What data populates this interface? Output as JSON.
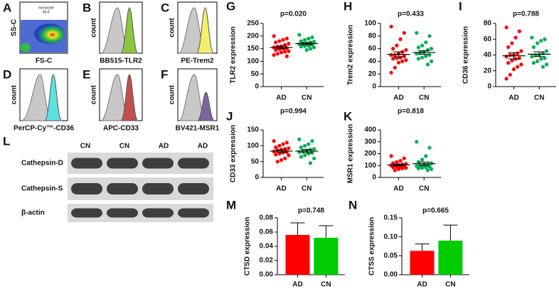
{
  "flow": {
    "panels": [
      {
        "label": "A",
        "x_label": "FS-C",
        "y_label": "SS-C",
        "gate": "monocyte",
        "gate_value": "45.6"
      },
      {
        "label": "B",
        "x_label": "BB515-TLR2",
        "y_label": "count",
        "color": "#8dc63f"
      },
      {
        "label": "C",
        "x_label": "PE-Trem2",
        "y_label": "count",
        "color": "#f2f06a"
      },
      {
        "label": "D",
        "x_label": "PerCP-Cy™-CD36",
        "y_label": "count",
        "color": "#5ee0e0"
      },
      {
        "label": "E",
        "x_label": "APC-CD33",
        "y_label": "count",
        "color": "#c0504d"
      },
      {
        "label": "F",
        "x_label": "BV421-MSR1",
        "y_label": "count",
        "color": "#8064a2"
      }
    ]
  },
  "blot": {
    "label": "L",
    "lanes": [
      "CN",
      "CN",
      "AD",
      "AD"
    ],
    "rows": [
      "Cathepsin-D",
      "Cathepsin-S",
      "β-actin"
    ]
  },
  "chart_data": [
    {
      "type": "strip",
      "label": "G",
      "annotation": "p=0.020",
      "y_label": "TLR2 expression",
      "categories": [
        "AD",
        "CN"
      ],
      "colors": [
        "#ff0000",
        "#00b050"
      ],
      "points": [
        [
          200,
          190,
          185,
          180,
          175,
          170,
          165,
          160,
          158,
          155,
          152,
          150,
          148,
          145,
          140,
          138,
          135,
          130,
          125,
          120
        ],
        [
          205,
          195,
          190,
          185,
          180,
          178,
          175,
          172,
          170,
          168,
          165,
          162,
          160,
          158,
          155,
          150,
          145
        ]
      ],
      "mean": [
        155,
        170
      ],
      "sem": [
        5,
        4
      ],
      "ylim": [
        0,
        250
      ],
      "yticks": [
        0,
        50,
        100,
        150,
        200,
        250
      ]
    },
    {
      "type": "strip",
      "label": "H",
      "annotation": "p=0.433",
      "y_label": "Trem2 expression",
      "categories": [
        "AD",
        "CN"
      ],
      "colors": [
        "#ff0000",
        "#00b050"
      ],
      "points": [
        [
          95,
          85,
          75,
          65,
          60,
          58,
          55,
          52,
          50,
          50,
          48,
          46,
          45,
          44,
          42,
          40,
          38,
          30,
          22
        ],
        [
          85,
          80,
          70,
          65,
          62,
          60,
          58,
          55,
          54,
          52,
          50,
          48,
          46,
          44,
          40,
          35
        ]
      ],
      "mean": [
        51,
        54
      ],
      "sem": [
        4,
        3
      ],
      "ylim": [
        0,
        100
      ],
      "yticks": [
        0,
        20,
        40,
        60,
        80,
        100
      ]
    },
    {
      "type": "strip",
      "label": "I",
      "annotation": "p=0.788",
      "y_label": "CD36 expression",
      "categories": [
        "AD",
        "CN"
      ],
      "colors": [
        "#ff0000",
        "#00b050"
      ],
      "points": [
        [
          75,
          70,
          62,
          55,
          50,
          45,
          42,
          40,
          40,
          38,
          36,
          35,
          33,
          30,
          28,
          25,
          22,
          15,
          10
        ],
        [
          62,
          60,
          58,
          55,
          50,
          45,
          42,
          40,
          40,
          38,
          36,
          35,
          32,
          30,
          28,
          25
        ]
      ],
      "mean": [
        39,
        41
      ],
      "sem": [
        4,
        3
      ],
      "ylim": [
        0,
        80
      ],
      "yticks": [
        0,
        20,
        40,
        60,
        80
      ]
    },
    {
      "type": "strip",
      "label": "J",
      "annotation": "p=0.994",
      "y_label": "CD33 expression",
      "categories": [
        "AD",
        "CN"
      ],
      "colors": [
        "#ff0000",
        "#00b050"
      ],
      "points": [
        [
          115,
          110,
          105,
          100,
          95,
          92,
          90,
          88,
          85,
          82,
          80,
          78,
          75,
          72,
          70,
          60,
          55,
          50
        ],
        [
          120,
          115,
          105,
          100,
          95,
          90,
          88,
          85,
          82,
          80,
          78,
          75,
          70,
          65,
          60,
          45
        ]
      ],
      "mean": [
        83,
        83
      ],
      "sem": [
        4,
        5
      ],
      "ylim": [
        0,
        150
      ],
      "yticks": [
        0,
        50,
        100,
        150
      ]
    },
    {
      "type": "strip",
      "label": "K",
      "annotation": "p=0.818",
      "y_label": "MSR1 expression",
      "categories": [
        "AD",
        "CN"
      ],
      "colors": [
        "#ff0000",
        "#00b050"
      ],
      "points": [
        [
          180,
          160,
          140,
          130,
          120,
          115,
          110,
          105,
          100,
          100,
          95,
          90,
          88,
          85,
          80,
          75,
          70,
          60
        ],
        [
          300,
          250,
          180,
          150,
          130,
          120,
          110,
          105,
          100,
          95,
          90,
          85,
          80,
          75,
          70,
          60
        ]
      ],
      "mean": [
        105,
        115
      ],
      "sem": [
        7,
        15
      ],
      "ylim": [
        0,
        400
      ],
      "yticks": [
        0,
        100,
        200,
        300,
        400
      ]
    },
    {
      "type": "bar",
      "label": "M",
      "annotation": "p=0.748",
      "y_label": "CTSD expression",
      "categories": [
        "AD",
        "CN"
      ],
      "colors": [
        "#ff0000",
        "#00cc00"
      ],
      "values": [
        0.056,
        0.052
      ],
      "errors": [
        0.017,
        0.017
      ],
      "ylim": [
        0,
        0.08
      ],
      "yticks": [
        {
          "value": 0,
          "label": "0.00"
        },
        {
          "value": 0.02,
          "label": "0.02"
        },
        {
          "value": 0.04,
          "label": "0.04"
        },
        {
          "value": 0.06,
          "label": "0.06"
        },
        {
          "value": 0.08,
          "label": "0.08"
        }
      ]
    },
    {
      "type": "bar",
      "label": "N",
      "annotation": "p=0.665",
      "y_label": "CTSS expression",
      "categories": [
        "AD",
        "CN"
      ],
      "colors": [
        "#ff0000",
        "#00cc00"
      ],
      "values": [
        0.063,
        0.09
      ],
      "errors": [
        0.018,
        0.041
      ],
      "ylim": [
        0,
        0.15
      ],
      "yticks": [
        {
          "value": 0,
          "label": "0.00"
        },
        {
          "value": 0.05,
          "label": "0.05"
        },
        {
          "value": 0.1,
          "label": "0.10"
        },
        {
          "value": 0.15,
          "label": "0.15"
        }
      ]
    }
  ]
}
